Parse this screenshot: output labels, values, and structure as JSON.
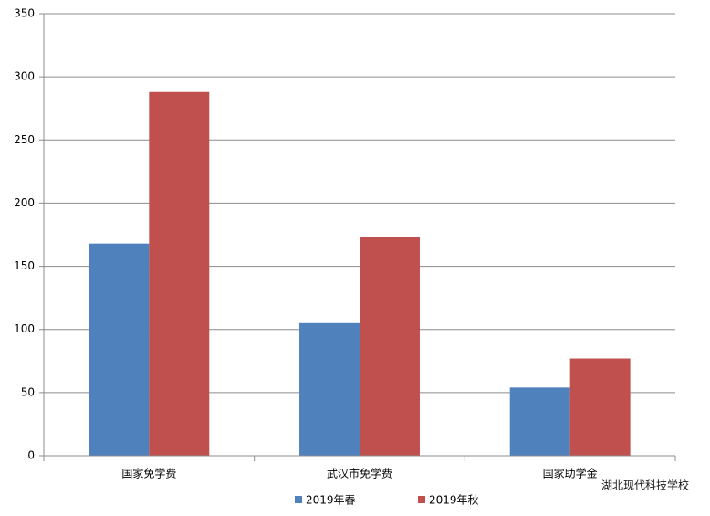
{
  "chart_data": {
    "type": "bar",
    "categories": [
      "国家免学费",
      "武汉市免学费",
      "国家助学金"
    ],
    "series": [
      {
        "name": "2019年春",
        "color": "#4f81bd",
        "values": [
          168,
          105,
          54
        ]
      },
      {
        "name": "2019年秋",
        "color": "#c0504d",
        "values": [
          288,
          173,
          77
        ]
      }
    ],
    "ylim": [
      0,
      350
    ],
    "yticks": [
      0,
      50,
      100,
      150,
      200,
      250,
      300,
      350
    ],
    "grid": true,
    "legend": "bottom",
    "watermark": "湖北现代科技学校"
  }
}
